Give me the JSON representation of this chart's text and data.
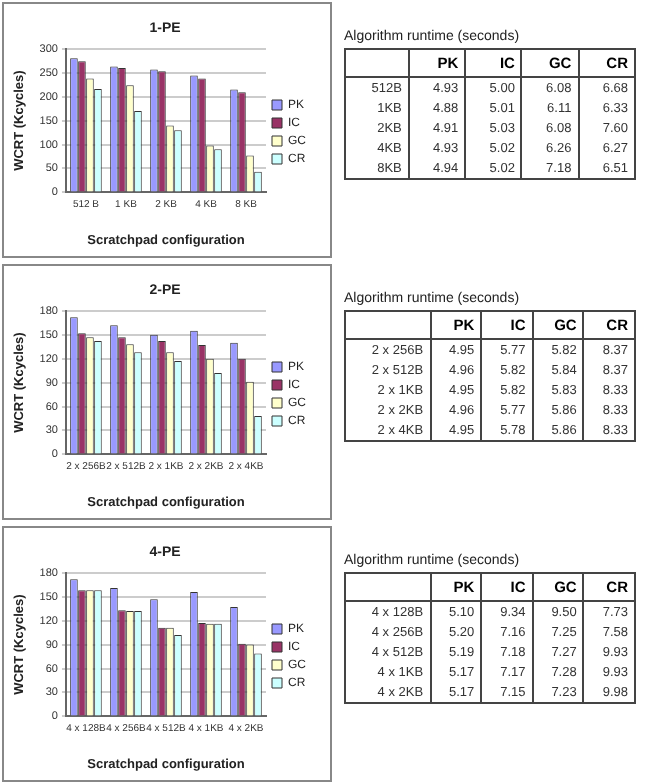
{
  "chart_data": [
    {
      "type": "bar",
      "title": "1-PE",
      "xlabel": "Scratchpad configuration",
      "ylabel": "WCRT (Kcycles)",
      "categories": [
        "512 B",
        "1 KB",
        "2 KB",
        "4 KB",
        "8 KB"
      ],
      "ylim": [
        0,
        300
      ],
      "yticks": [
        0,
        50,
        100,
        150,
        200,
        250,
        300
      ],
      "grid": "y",
      "legend": "right",
      "series": [
        {
          "name": "PK",
          "color": "#9999ff",
          "values": [
            280,
            263,
            257,
            244,
            215
          ]
        },
        {
          "name": "IC",
          "color": "#993366",
          "values": [
            274,
            260,
            253,
            238,
            209
          ]
        },
        {
          "name": "GC",
          "color": "#ffffcc",
          "values": [
            238,
            224,
            140,
            98,
            77
          ]
        },
        {
          "name": "CR",
          "color": "#ccffff",
          "values": [
            216,
            170,
            130,
            90,
            43
          ]
        }
      ]
    },
    {
      "type": "heatmap",
      "title": "Algorithm runtime (seconds)",
      "categories": [
        "PK",
        "IC",
        "GC",
        "CR"
      ],
      "y_categories": [
        "512B",
        "1KB",
        "2KB",
        "4KB",
        "8KB"
      ],
      "cells": [
        [
          4.93,
          5.0,
          6.08,
          6.68
        ],
        [
          4.88,
          5.01,
          6.11,
          6.33
        ],
        [
          4.91,
          5.03,
          6.08,
          7.6
        ],
        [
          4.93,
          5.02,
          6.26,
          6.27
        ],
        [
          4.94,
          5.02,
          7.18,
          6.51
        ]
      ],
      "cell_labels": [
        [
          "4.93",
          "5.00",
          "6.08",
          "6.68"
        ],
        [
          "4.88",
          "5.01",
          "6.11",
          "6.33"
        ],
        [
          "4.91",
          "5.03",
          "6.08",
          "7.60"
        ],
        [
          "4.93",
          "5.02",
          "6.26",
          "6.27"
        ],
        [
          "4.94",
          "5.02",
          "7.18",
          "6.51"
        ]
      ]
    },
    {
      "type": "bar",
      "title": "2-PE",
      "xlabel": "Scratchpad configuration",
      "ylabel": "WCRT (Kcycles)",
      "categories": [
        "2 x 256B",
        "2 x 512B",
        "2 x 1KB",
        "2 x 2KB",
        "2 x 4KB"
      ],
      "ylim": [
        0,
        180
      ],
      "yticks": [
        0,
        30,
        60,
        90,
        120,
        150,
        180
      ],
      "grid": "y",
      "legend": "right",
      "series": [
        {
          "name": "PK",
          "color": "#9999ff",
          "values": [
            172,
            162,
            150,
            155,
            140
          ]
        },
        {
          "name": "IC",
          "color": "#993366",
          "values": [
            152,
            147,
            142,
            137,
            120
          ]
        },
        {
          "name": "GC",
          "color": "#ffffcc",
          "values": [
            147,
            138,
            128,
            120,
            91
          ]
        },
        {
          "name": "CR",
          "color": "#ccffff",
          "values": [
            142,
            128,
            117,
            102,
            48
          ]
        }
      ]
    },
    {
      "type": "heatmap",
      "title": "Algorithm runtime (seconds)",
      "categories": [
        "PK",
        "IC",
        "GC",
        "CR"
      ],
      "y_categories": [
        "2 x 256B",
        "2 x 512B",
        "2 x 1KB",
        "2 x 2KB",
        "2 x 4KB"
      ],
      "cells": [
        [
          4.95,
          5.77,
          5.82,
          8.37
        ],
        [
          4.96,
          5.82,
          5.84,
          8.37
        ],
        [
          4.95,
          5.82,
          5.83,
          8.33
        ],
        [
          4.96,
          5.77,
          5.86,
          8.33
        ],
        [
          4.95,
          5.78,
          5.86,
          8.33
        ]
      ],
      "cell_labels": [
        [
          "4.95",
          "5.77",
          "5.82",
          "8.37"
        ],
        [
          "4.96",
          "5.82",
          "5.84",
          "8.37"
        ],
        [
          "4.95",
          "5.82",
          "5.83",
          "8.33"
        ],
        [
          "4.96",
          "5.77",
          "5.86",
          "8.33"
        ],
        [
          "4.95",
          "5.78",
          "5.86",
          "8.33"
        ]
      ]
    },
    {
      "type": "bar",
      "title": "4-PE",
      "xlabel": "Scratchpad configuration",
      "ylabel": "WCRT (Kcycles)",
      "categories": [
        "4 x 128B",
        "4 x 256B",
        "4 x 512B",
        "4 x 1KB",
        "4 x 2KB"
      ],
      "ylim": [
        0,
        180
      ],
      "yticks": [
        0,
        30,
        60,
        90,
        120,
        150,
        180
      ],
      "grid": "y",
      "legend": "right",
      "series": [
        {
          "name": "PK",
          "color": "#9999ff",
          "values": [
            172,
            161,
            147,
            156,
            137
          ]
        },
        {
          "name": "IC",
          "color": "#993366",
          "values": [
            158,
            133,
            111,
            117,
            91
          ]
        },
        {
          "name": "GC",
          "color": "#ffffcc",
          "values": [
            158,
            132,
            111,
            116,
            90
          ]
        },
        {
          "name": "CR",
          "color": "#ccffff",
          "values": [
            158,
            132,
            102,
            116,
            79
          ]
        }
      ]
    },
    {
      "type": "heatmap",
      "title": "Algorithm runtime (seconds)",
      "categories": [
        "PK",
        "IC",
        "GC",
        "CR"
      ],
      "y_categories": [
        "4 x 128B",
        "4 x 256B",
        "4 x 512B",
        "4 x 1KB",
        "4 x 2KB"
      ],
      "cells": [
        [
          5.1,
          9.34,
          9.5,
          7.73
        ],
        [
          5.2,
          7.16,
          7.25,
          7.58
        ],
        [
          5.19,
          7.18,
          7.27,
          9.93
        ],
        [
          5.17,
          7.17,
          7.28,
          9.93
        ],
        [
          5.17,
          7.15,
          7.23,
          9.98
        ]
      ],
      "cell_labels": [
        [
          "5.10",
          "9.34",
          "9.50",
          "7.73"
        ],
        [
          "5.20",
          "7.16",
          "7.25",
          "7.58"
        ],
        [
          "5.19",
          "7.18",
          "7.27",
          "9.93"
        ],
        [
          "5.17",
          "7.17",
          "7.28",
          "9.93"
        ],
        [
          "5.17",
          "7.15",
          "7.23",
          "9.98"
        ]
      ]
    }
  ]
}
